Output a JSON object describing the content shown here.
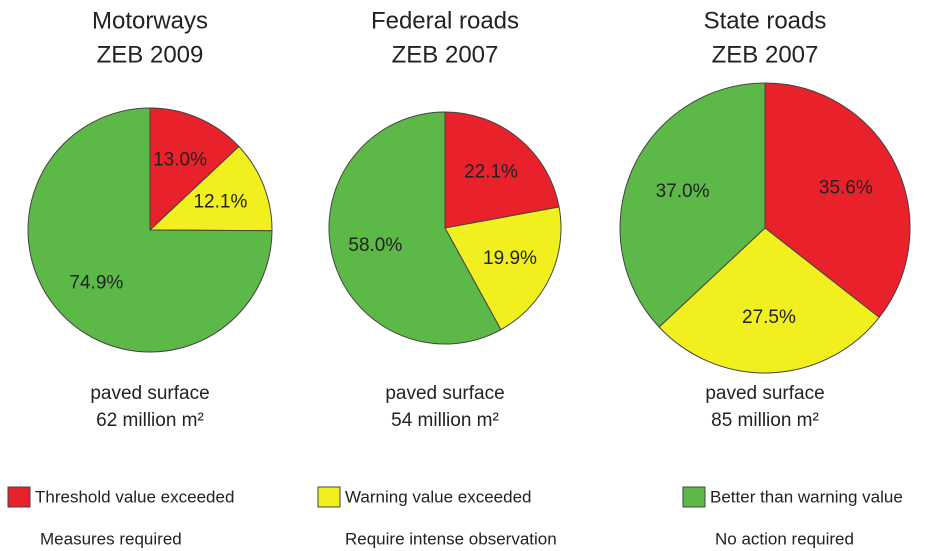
{
  "chart_data": [
    {
      "type": "pie",
      "title": "Motorways",
      "subtitle": "ZEB 2009",
      "values": [
        13.0,
        12.1,
        74.9
      ],
      "value_labels": [
        "13.0%",
        "12.1%",
        "74.9%"
      ],
      "footer": [
        "paved surface",
        "62 million m²"
      ]
    },
    {
      "type": "pie",
      "title": "Federal roads",
      "subtitle": "ZEB 2007",
      "values": [
        22.1,
        19.9,
        58.0
      ],
      "value_labels": [
        "22.1%",
        "19.9%",
        "58.0%"
      ],
      "footer": [
        "paved surface",
        "54 million m²"
      ]
    },
    {
      "type": "pie",
      "title": "State roads",
      "subtitle": "ZEB 2007",
      "values": [
        35.6,
        27.5,
        37.0
      ],
      "value_labels": [
        "35.6%",
        "27.5%",
        "37.0%"
      ],
      "footer": [
        "paved surface",
        "85 million m²"
      ]
    }
  ],
  "legend": [
    {
      "name": "Threshold value exceeded",
      "note": "Measures required",
      "color": "#e8212a"
    },
    {
      "name": "Warning value exceeded",
      "note": "Require intense observation",
      "color": "#f2ef1e"
    },
    {
      "name": "Better than warning value",
      "note": "No action required",
      "color": "#5cb947"
    }
  ]
}
